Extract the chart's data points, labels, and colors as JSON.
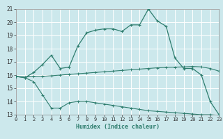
{
  "xlabel": "Humidex (Indice chaleur)",
  "bg_color": "#cce8ec",
  "grid_color": "#ffffff",
  "line_color": "#2e7d6e",
  "xlim": [
    0,
    23
  ],
  "ylim": [
    13,
    21
  ],
  "xticks": [
    0,
    1,
    2,
    3,
    4,
    5,
    6,
    7,
    8,
    9,
    10,
    11,
    12,
    13,
    14,
    15,
    16,
    17,
    18,
    19,
    20,
    21,
    22,
    23
  ],
  "yticks": [
    13,
    14,
    15,
    16,
    17,
    18,
    19,
    20,
    21
  ],
  "line1_x": [
    0,
    1,
    2,
    3,
    4,
    5,
    6,
    7,
    8,
    9,
    10,
    11,
    12,
    13,
    14,
    15,
    16,
    17,
    18,
    19,
    20,
    21,
    22,
    23
  ],
  "line1_y": [
    15.9,
    15.8,
    16.2,
    16.8,
    17.5,
    16.5,
    16.6,
    18.2,
    19.2,
    19.4,
    19.5,
    19.5,
    19.3,
    19.8,
    19.8,
    21.0,
    20.1,
    19.7,
    17.3,
    16.5,
    16.5,
    16.0,
    14.0,
    13.0
  ],
  "line2_x": [
    0,
    1,
    2,
    3,
    4,
    5,
    6,
    7,
    8,
    9,
    10,
    11,
    12,
    13,
    14,
    15,
    16,
    17,
    18,
    19,
    20,
    21,
    22,
    23
  ],
  "line2_y": [
    15.9,
    15.85,
    15.9,
    15.9,
    15.95,
    16.0,
    16.05,
    16.1,
    16.15,
    16.2,
    16.25,
    16.3,
    16.35,
    16.4,
    16.45,
    16.5,
    16.55,
    16.58,
    16.6,
    16.62,
    16.65,
    16.62,
    16.5,
    16.3
  ],
  "line3_x": [
    0,
    1,
    2,
    3,
    4,
    5,
    6,
    7,
    8,
    9,
    10,
    11,
    12,
    13,
    14,
    15,
    16,
    17,
    18,
    19,
    20,
    21,
    22,
    23
  ],
  "line3_y": [
    15.9,
    15.8,
    15.5,
    14.5,
    13.5,
    13.5,
    13.9,
    14.0,
    14.0,
    13.9,
    13.8,
    13.7,
    13.6,
    13.5,
    13.4,
    13.3,
    13.25,
    13.2,
    13.15,
    13.1,
    13.05,
    13.0,
    13.0,
    12.95
  ]
}
